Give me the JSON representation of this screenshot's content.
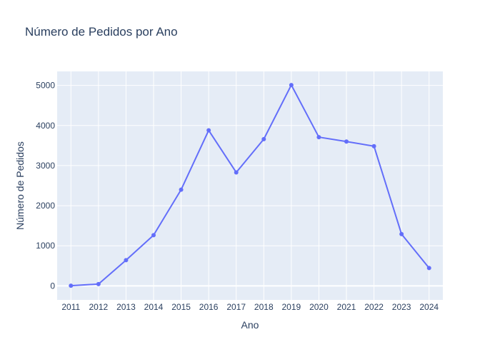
{
  "chart_data": {
    "type": "line",
    "title": "Número de Pedidos por Ano",
    "xlabel": "Ano",
    "ylabel": "Número de Pedidos",
    "x": [
      2011,
      2012,
      2013,
      2014,
      2015,
      2016,
      2017,
      2018,
      2019,
      2020,
      2021,
      2022,
      2023,
      2024
    ],
    "series": [
      {
        "values": [
          5,
          45,
          640,
          1265,
          2400,
          3880,
          2830,
          3660,
          5010,
          3710,
          3600,
          3485,
          1290,
          445
        ]
      }
    ],
    "ylim": [
      -350,
      5350
    ],
    "yticks": [
      0,
      1000,
      2000,
      3000,
      4000,
      5000
    ],
    "grid": true,
    "line_color": "#636efa",
    "plot_bg": "#e5ecf6",
    "grid_color": "#ffffff"
  }
}
